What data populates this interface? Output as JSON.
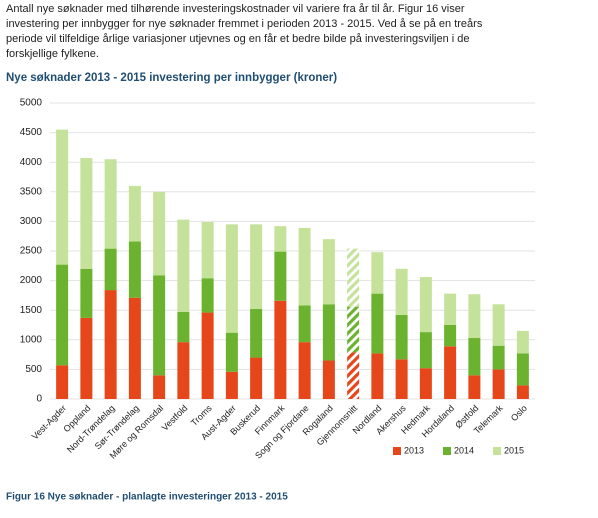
{
  "intro": [
    "Antall nye søknader med tilhørende investeringskostnader vil variere fra år til år. Figur 16 viser",
    "investering per innbygger for nye søknader fremmet i perioden 2013 - 2015. Ved å se på en treårs",
    "periode vil tilfeldige årlige variasjoner utjevnes og en får et bedre bilde på investeringsviljen i de",
    "forskjellige fylkene."
  ],
  "chart_data": {
    "type": "stacked_bar",
    "title": "Nye søknader 2013 - 2015 investering per innbygger (kroner)",
    "categories": [
      "Vest-Agder",
      "Oppland",
      "Nord-Trøndelag",
      "Sør-Trøndelag",
      "Møre og Romsdal",
      "Vestfold",
      "Troms",
      "Aust-Agder",
      "Buskerud",
      "Finnmark",
      "Sogn og Fjordane",
      "Rogaland",
      "Gjennomsnitt",
      "Nordland",
      "Akershus",
      "Hedmark",
      "Hordaland",
      "Østfold",
      "Telemark",
      "Oslo"
    ],
    "series": [
      {
        "name": "2013",
        "color": "#e5461a",
        "values": [
          570,
          1370,
          1840,
          1710,
          400,
          960,
          1460,
          460,
          700,
          1660,
          960,
          650,
          790,
          770,
          670,
          520,
          890,
          400,
          500,
          230
        ]
      },
      {
        "name": "2014",
        "color": "#6bb22e",
        "values": [
          1700,
          830,
          700,
          950,
          1690,
          510,
          580,
          660,
          820,
          830,
          620,
          950,
          770,
          1010,
          750,
          610,
          360,
          630,
          400,
          540
        ]
      },
      {
        "name": "2015",
        "color": "#c5e29b",
        "values": [
          2280,
          1870,
          1510,
          940,
          1410,
          1560,
          950,
          1830,
          1430,
          430,
          1310,
          1100,
          980,
          700,
          780,
          930,
          530,
          740,
          700,
          380
        ]
      }
    ],
    "hatched_category": 12,
    "ylim": [
      0,
      5000
    ],
    "yticks": [
      0,
      500,
      1000,
      1500,
      2000,
      2500,
      3000,
      3500,
      4000,
      4500,
      5000
    ],
    "grid": true,
    "legend": "bottom-right"
  },
  "caption": "Figur 16 Nye søknader - planlagte investeringer 2013 - 2015"
}
